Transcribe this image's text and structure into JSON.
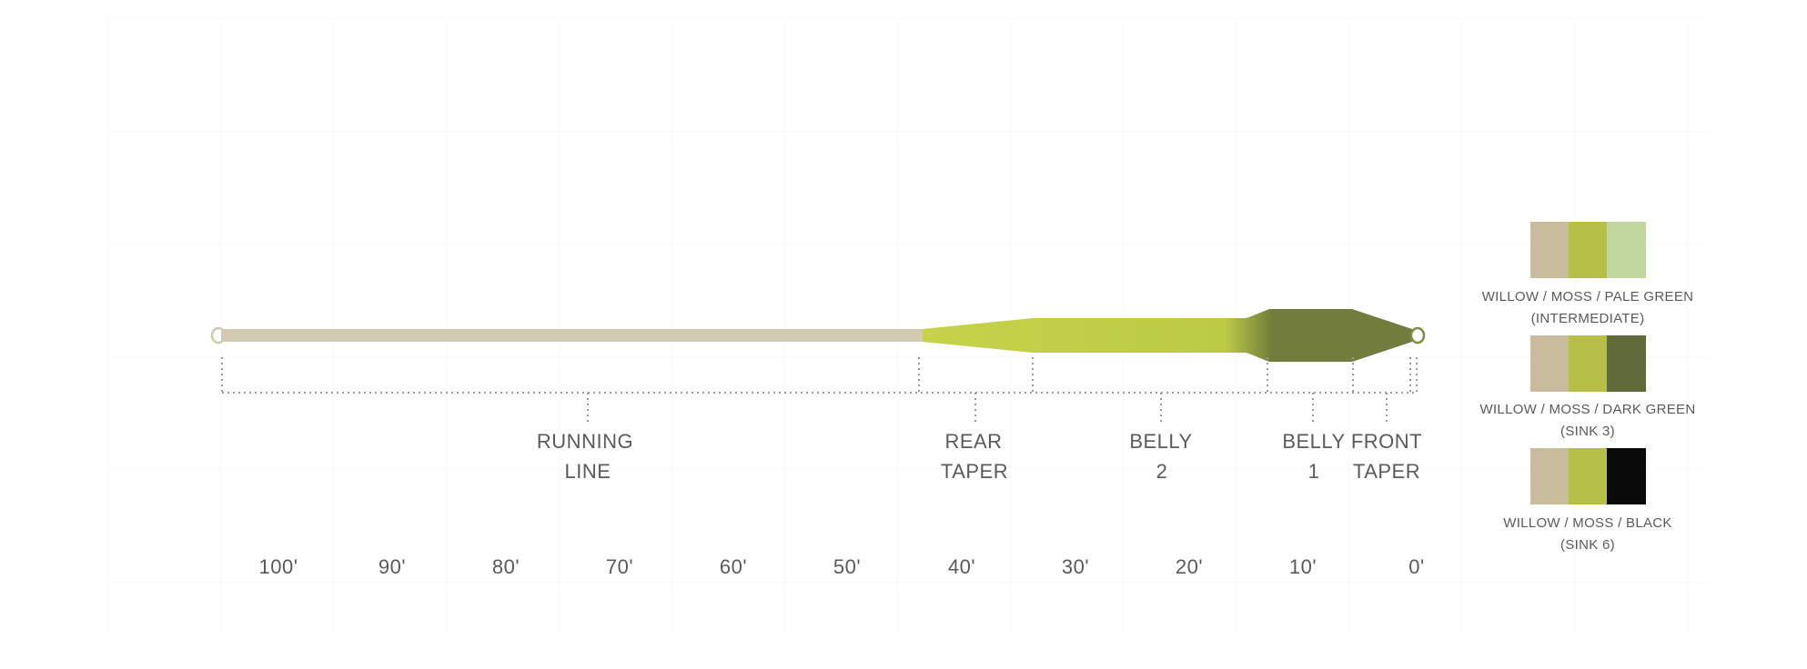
{
  "diagram": {
    "line_colors": {
      "running": "#d2cbb2",
      "rear": "#c8d64e",
      "belly2": "#c5d24a",
      "belly1": "#707a3c",
      "tip": "#7f8a45"
    },
    "segments": [
      {
        "id": "running-line",
        "line1": "RUNNING",
        "line2": "LINE"
      },
      {
        "id": "rear-taper",
        "line1": "REAR",
        "line2": "TAPER"
      },
      {
        "id": "belly-2",
        "line1": "BELLY",
        "line2": "2"
      },
      {
        "id": "belly-1",
        "line1": "BELLY",
        "line2": "1"
      },
      {
        "id": "front-taper",
        "line1": "FRONT",
        "line2": "TAPER"
      }
    ],
    "scale": [
      "100'",
      "90'",
      "80'",
      "70'",
      "60'",
      "50'",
      "40'",
      "30'",
      "20'",
      "10'",
      "0'"
    ]
  },
  "legend": [
    {
      "colors": [
        "#c8bc9c",
        "#b7c046",
        "#c2d6a0"
      ],
      "line1": "WILLOW / MOSS / PALE GREEN",
      "line2": "(INTERMEDIATE)"
    },
    {
      "colors": [
        "#c8bc9c",
        "#b7c046",
        "#5f6b3a"
      ],
      "line1": "WILLOW / MOSS / DARK GREEN",
      "line2": "(SINK 3)"
    },
    {
      "colors": [
        "#c8bc9c",
        "#b7c046",
        "#0a0a0a"
      ],
      "line1": "WILLOW / MOSS / BLACK",
      "line2": "(SINK 6)"
    }
  ]
}
